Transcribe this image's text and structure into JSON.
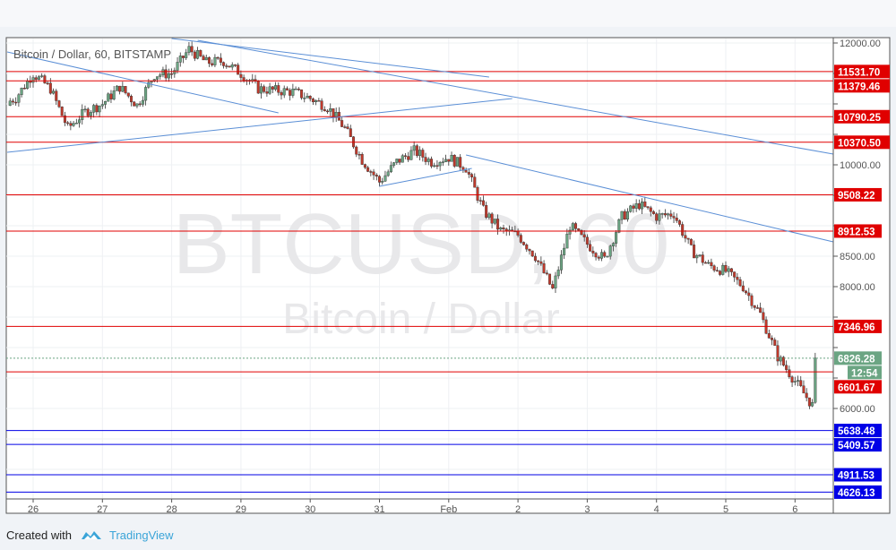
{
  "chart_data": {
    "type": "candlestick",
    "title": "Bitcoin / Dollar, 60, BITSTAMP",
    "watermark": {
      "symbol": "BTCUSD, 60",
      "name": "Bitcoin / Dollar"
    },
    "ylim": [
      4500,
      12070
    ],
    "xlim": [
      "Jan 25 15:00",
      "Feb 6 23:00"
    ],
    "y_ticks": [
      12000,
      11500,
      11000,
      10500,
      10000,
      9500,
      9000,
      8500,
      8000,
      7500,
      7000,
      6500,
      6000,
      5500,
      5000
    ],
    "x_ticks": [
      {
        "label": "26",
        "t": "Jan 26 00:00"
      },
      {
        "label": "27",
        "t": "Jan 27 00:00"
      },
      {
        "label": "28",
        "t": "Jan 28 00:00"
      },
      {
        "label": "29",
        "t": "Jan 29 00:00"
      },
      {
        "label": "30",
        "t": "Jan 30 00:00"
      },
      {
        "label": "31",
        "t": "Jan 31 00:00"
      },
      {
        "label": "Feb",
        "t": "Feb 1 00:00"
      },
      {
        "label": "2",
        "t": "Feb 2 00:00"
      },
      {
        "label": "3",
        "t": "Feb 3 00:00"
      },
      {
        "label": "4",
        "t": "Feb 4 00:00"
      },
      {
        "label": "5",
        "t": "Feb 5 00:00"
      },
      {
        "label": "6",
        "t": "Feb 6 00:00"
      }
    ],
    "grid": true,
    "approx_closes_6h": {
      "start": "Jan 25 18:00",
      "values": [
        11100,
        11500,
        11250,
        10600,
        10870,
        11000,
        11280,
        10980,
        11480,
        11500,
        11900,
        11680,
        11700,
        11500,
        11250,
        11220,
        11200,
        11090,
        10950,
        10600,
        10080,
        9720,
        10050,
        10230,
        10050,
        10120,
        9950,
        9250,
        8920,
        8850,
        8500,
        7950,
        9000,
        8700,
        8450,
        9150,
        9350,
        9150,
        9200,
        8600,
        8350,
        8250,
        8000,
        7550,
        6850,
        6450,
        6050
      ]
    },
    "last_price": {
      "value": 6826.28,
      "label": "6826.28",
      "countdown": "12:54",
      "color": "#6ba583"
    },
    "resistance_levels": [
      {
        "value": 11531.7,
        "label": "11531.70"
      },
      {
        "value": 11379.46,
        "label": "11379.46"
      },
      {
        "value": 10790.25,
        "label": "10790.25"
      },
      {
        "value": 10370.5,
        "label": "10370.50"
      },
      {
        "value": 9508.22,
        "label": "9508.22"
      },
      {
        "value": 8912.53,
        "label": "8912.53"
      },
      {
        "value": 7346.96,
        "label": "7346.96"
      },
      {
        "value": 6601.67,
        "label": "6601.67"
      }
    ],
    "support_levels": [
      {
        "value": 5638.48,
        "label": "5638.48"
      },
      {
        "value": 5409.57,
        "label": "5409.57"
      },
      {
        "value": 4911.53,
        "label": "4911.53"
      },
      {
        "value": 4626.13,
        "label": "4626.13"
      }
    ],
    "trendlines": [
      {
        "from": [
          "Jan 25 15:00",
          11853
        ],
        "to": [
          "Jan 29 13:00",
          10853
        ]
      },
      {
        "from": [
          "Jan 25 15:00",
          10206
        ],
        "to": [
          "Feb 1 22:00",
          11088
        ]
      },
      {
        "from": [
          "Jan 28 00:00",
          12074
        ],
        "to": [
          "Feb 1 14:00",
          11441
        ]
      },
      {
        "from": [
          "Jan 28 09:00",
          12044
        ],
        "to": [
          "Feb 6 23:00",
          10176
        ]
      },
      {
        "from": [
          "Jan 31 00:00",
          9647
        ],
        "to": [
          "Feb 1 08:00",
          9941
        ]
      },
      {
        "from": [
          "Feb 1 06:00",
          10162
        ],
        "to": [
          "Feb 6 23:00",
          8735
        ]
      }
    ],
    "colors": {
      "up": "#53b987",
      "down": "#eb4d5c",
      "resistance": "#e00000",
      "support": "#0000e6",
      "trendline": "#5b8fd6",
      "up_fill": "#6ba583"
    }
  },
  "footer": {
    "created_with": "Created with",
    "brand": "TradingView"
  }
}
